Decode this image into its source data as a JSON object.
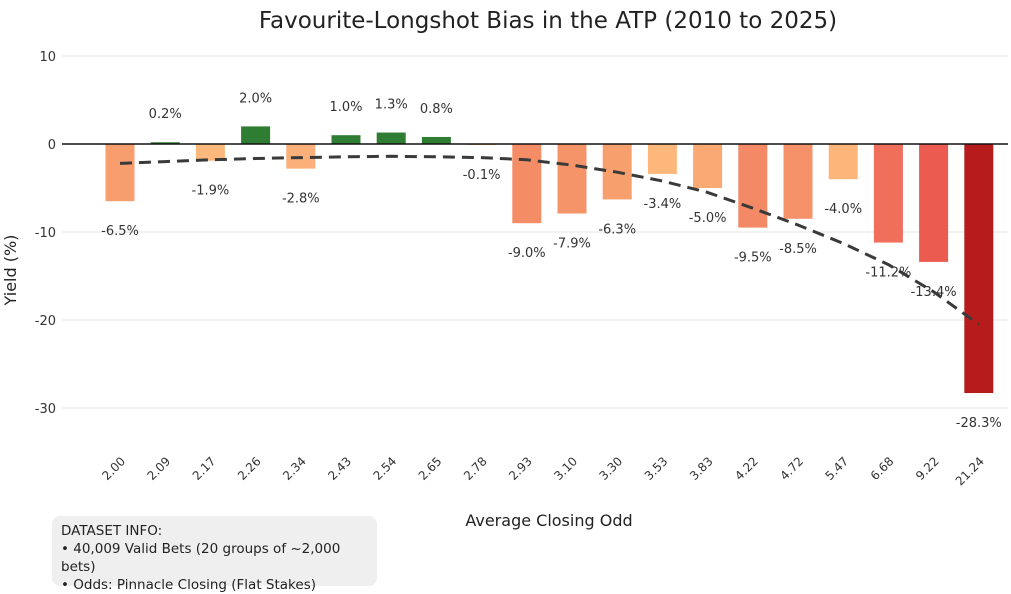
{
  "chart_data": {
    "type": "bar",
    "title": "Favourite-Longshot Bias in the ATP (2010 to 2025)",
    "xlabel": "Average Closing Odd",
    "ylabel": "Yield (%)",
    "ylim": [
      -35,
      10
    ],
    "yticks": [
      10,
      0,
      -10,
      -20,
      -30
    ],
    "grid": true,
    "categories": [
      "2.00",
      "2.09",
      "2.17",
      "2.26",
      "2.34",
      "2.43",
      "2.54",
      "2.65",
      "2.78",
      "2.93",
      "3.10",
      "3.30",
      "3.53",
      "3.83",
      "4.22",
      "4.72",
      "5.47",
      "6.68",
      "9.22",
      "21.24"
    ],
    "values": [
      -6.5,
      0.2,
      -1.9,
      2.0,
      -2.8,
      1.0,
      1.3,
      0.8,
      -0.1,
      -9.0,
      -7.9,
      -6.3,
      -3.4,
      -5.0,
      -9.5,
      -8.5,
      -4.0,
      -11.2,
      -13.4,
      -28.3
    ],
    "data_labels": [
      "-6.5%",
      "0.2%",
      "-1.9%",
      "2.0%",
      "-2.8%",
      "1.0%",
      "1.3%",
      "0.8%",
      "-0.1%",
      "-9.0%",
      "-7.9%",
      "-6.3%",
      "-3.4%",
      "-5.0%",
      "-9.5%",
      "-8.5%",
      "-4.0%",
      "-11.2%",
      "-13.4%",
      "-28.3%"
    ],
    "colors": [
      "#f89d6d",
      "#2e7d32",
      "#fdb97b",
      "#2e7d32",
      "#fcb079",
      "#2e7d32",
      "#2e7d32",
      "#2e7d32",
      "#fdbf80",
      "#f48d66",
      "#f59469",
      "#f89f6e",
      "#fdb77a",
      "#fba972",
      "#f38a65",
      "#f5926a",
      "#fdb57a",
      "#ef6f5b",
      "#eb5b50",
      "#b71c1c"
    ],
    "trend": {
      "style": "dashed",
      "color": "#3a3a3a",
      "values": [
        -2.2,
        -2.0,
        -1.8,
        -1.65,
        -1.55,
        -1.45,
        -1.4,
        -1.45,
        -1.55,
        -1.8,
        -2.4,
        -3.2,
        -4.2,
        -5.5,
        -7.3,
        -9.2,
        -11.3,
        -13.7,
        -16.8,
        -20.5
      ]
    }
  },
  "info_box": {
    "heading": "DATASET INFO:",
    "lines": [
      "• 40,009 Valid Bets (20 groups of ~2,000 bets)",
      "• Odds: Pinnacle Closing (Flat Stakes)"
    ]
  }
}
